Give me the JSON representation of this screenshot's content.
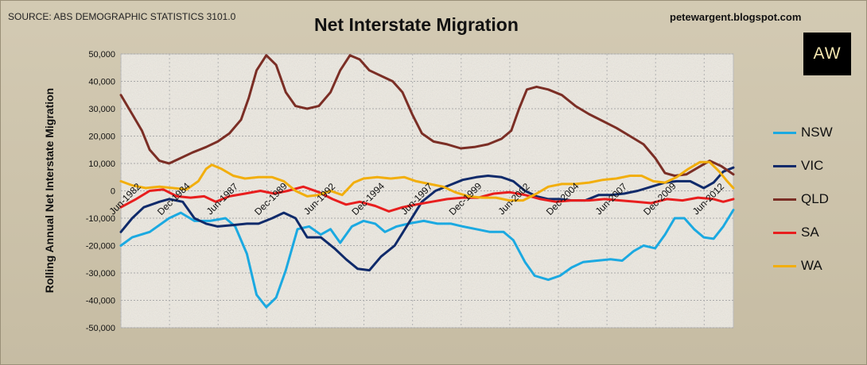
{
  "header": {
    "source": "SOURCE: ABS DEMOGRAPHIC STATISTICS 3101.0",
    "title": "Net Interstate Migration",
    "blog": "petewargent.blogspot.com",
    "logo": "AW"
  },
  "chart_data": {
    "type": "line",
    "title": "Net Interstate Migration",
    "ylabel": "Rolling Annual Net Interstate Migration",
    "xlabel": "",
    "ylim": [
      -50000,
      50000
    ],
    "yticks": [
      50000,
      40000,
      30000,
      20000,
      10000,
      0,
      -10000,
      -20000,
      -30000,
      -40000,
      -50000
    ],
    "ytick_labels": [
      "50,000",
      "40,000",
      "30,000",
      "20,000",
      "10,000",
      "0",
      "-10,000",
      "-20,000",
      "-30,000",
      "-40,000",
      "-50,000"
    ],
    "xlim": [
      1982.42,
      2013.92
    ],
    "xticks": [
      1982.42,
      1984.92,
      1987.42,
      1989.92,
      1992.42,
      1994.92,
      1997.42,
      1999.92,
      2002.42,
      2004.92,
      2007.42,
      2009.92,
      2012.42
    ],
    "xtick_labels": [
      "Jun-1982",
      "Dec-1984",
      "Jun-1987",
      "Dec-1989",
      "Jun-1992",
      "Dec-1994",
      "Jun-1997",
      "Dec-1999",
      "Jun-2002",
      "Dec-2004",
      "Jun-2007",
      "Dec-2009",
      "Jun-2012"
    ],
    "grid": true,
    "legend_position": "right",
    "series": [
      {
        "name": "NSW",
        "color": "#1ba9e1",
        "points": [
          [
            1982.42,
            -20000
          ],
          [
            1983.0,
            -17000
          ],
          [
            1983.9,
            -15000
          ],
          [
            1984.9,
            -10000
          ],
          [
            1985.5,
            -8000
          ],
          [
            1986.2,
            -11000
          ],
          [
            1987.0,
            -11000
          ],
          [
            1987.8,
            -10000
          ],
          [
            1988.3,
            -13000
          ],
          [
            1988.9,
            -23000
          ],
          [
            1989.4,
            -38000
          ],
          [
            1989.9,
            -42500
          ],
          [
            1990.4,
            -39000
          ],
          [
            1990.9,
            -29000
          ],
          [
            1991.5,
            -14000
          ],
          [
            1992.1,
            -13000
          ],
          [
            1992.7,
            -16000
          ],
          [
            1993.2,
            -14000
          ],
          [
            1993.7,
            -19000
          ],
          [
            1994.3,
            -13000
          ],
          [
            1994.9,
            -11000
          ],
          [
            1995.5,
            -12000
          ],
          [
            1996.0,
            -15000
          ],
          [
            1996.6,
            -13000
          ],
          [
            1997.2,
            -12000
          ],
          [
            1998.0,
            -11000
          ],
          [
            1998.7,
            -12000
          ],
          [
            1999.4,
            -12000
          ],
          [
            2000.0,
            -13000
          ],
          [
            2000.7,
            -14000
          ],
          [
            2001.4,
            -15000
          ],
          [
            2002.1,
            -15000
          ],
          [
            2002.6,
            -18000
          ],
          [
            2003.2,
            -26000
          ],
          [
            2003.7,
            -31000
          ],
          [
            2004.4,
            -32500
          ],
          [
            2005.0,
            -31000
          ],
          [
            2005.6,
            -28000
          ],
          [
            2006.2,
            -26000
          ],
          [
            2006.9,
            -25500
          ],
          [
            2007.6,
            -25000
          ],
          [
            2008.2,
            -25500
          ],
          [
            2008.8,
            -22000
          ],
          [
            2009.3,
            -20000
          ],
          [
            2009.9,
            -21000
          ],
          [
            2010.4,
            -16000
          ],
          [
            2010.9,
            -10000
          ],
          [
            2011.4,
            -10000
          ],
          [
            2011.9,
            -14000
          ],
          [
            2012.4,
            -17000
          ],
          [
            2012.9,
            -17500
          ],
          [
            2013.4,
            -13000
          ],
          [
            2013.92,
            -7000
          ]
        ]
      },
      {
        "name": "VIC",
        "color": "#0f2a6a",
        "points": [
          [
            1982.42,
            -15000
          ],
          [
            1983.0,
            -10000
          ],
          [
            1983.6,
            -6000
          ],
          [
            1984.4,
            -4000
          ],
          [
            1984.9,
            -3000
          ],
          [
            1985.6,
            -4000
          ],
          [
            1986.2,
            -10000
          ],
          [
            1986.8,
            -12000
          ],
          [
            1987.4,
            -13000
          ],
          [
            1988.2,
            -12500
          ],
          [
            1988.9,
            -12000
          ],
          [
            1989.5,
            -12000
          ],
          [
            1990.2,
            -10000
          ],
          [
            1990.8,
            -8000
          ],
          [
            1991.4,
            -10000
          ],
          [
            1992.0,
            -17000
          ],
          [
            1992.7,
            -17000
          ],
          [
            1993.4,
            -21000
          ],
          [
            1994.0,
            -25000
          ],
          [
            1994.6,
            -28500
          ],
          [
            1995.2,
            -29000
          ],
          [
            1995.8,
            -24000
          ],
          [
            1996.5,
            -20000
          ],
          [
            1997.2,
            -12000
          ],
          [
            1997.9,
            -4000
          ],
          [
            1998.6,
            0
          ],
          [
            1999.3,
            2000
          ],
          [
            2000.0,
            4000
          ],
          [
            2000.7,
            5000
          ],
          [
            2001.3,
            5500
          ],
          [
            2002.0,
            5000
          ],
          [
            2002.6,
            3500
          ],
          [
            2003.2,
            0
          ],
          [
            2003.8,
            -2000
          ],
          [
            2004.4,
            -3000
          ],
          [
            2005.0,
            -3000
          ],
          [
            2005.6,
            -3500
          ],
          [
            2006.3,
            -3500
          ],
          [
            2007.0,
            -1500
          ],
          [
            2007.6,
            -1500
          ],
          [
            2008.3,
            -1000
          ],
          [
            2009.0,
            0
          ],
          [
            2009.7,
            1500
          ],
          [
            2010.4,
            3000
          ],
          [
            2011.0,
            3500
          ],
          [
            2011.7,
            3500
          ],
          [
            2012.4,
            1000
          ],
          [
            2012.9,
            3000
          ],
          [
            2013.4,
            7000
          ],
          [
            2013.92,
            8500
          ]
        ]
      },
      {
        "name": "QLD",
        "color": "#7b2e25",
        "points": [
          [
            1982.42,
            35000
          ],
          [
            1983.0,
            28000
          ],
          [
            1983.5,
            22000
          ],
          [
            1983.9,
            15000
          ],
          [
            1984.4,
            11000
          ],
          [
            1984.9,
            10000
          ],
          [
            1985.5,
            12000
          ],
          [
            1986.1,
            14000
          ],
          [
            1986.8,
            16000
          ],
          [
            1987.4,
            18000
          ],
          [
            1988.0,
            21000
          ],
          [
            1988.6,
            26000
          ],
          [
            1989.0,
            34000
          ],
          [
            1989.4,
            44000
          ],
          [
            1989.9,
            49500
          ],
          [
            1990.4,
            46000
          ],
          [
            1990.9,
            36000
          ],
          [
            1991.4,
            31000
          ],
          [
            1992.0,
            30000
          ],
          [
            1992.6,
            31000
          ],
          [
            1993.2,
            36000
          ],
          [
            1993.7,
            44000
          ],
          [
            1994.2,
            49500
          ],
          [
            1994.7,
            48000
          ],
          [
            1995.2,
            44000
          ],
          [
            1995.8,
            42000
          ],
          [
            1996.4,
            40000
          ],
          [
            1996.9,
            36000
          ],
          [
            1997.4,
            28000
          ],
          [
            1997.9,
            21000
          ],
          [
            1998.5,
            18000
          ],
          [
            1999.2,
            17000
          ],
          [
            1999.9,
            15500
          ],
          [
            2000.6,
            16000
          ],
          [
            2001.3,
            17000
          ],
          [
            2002.0,
            19000
          ],
          [
            2002.5,
            22000
          ],
          [
            2002.9,
            30000
          ],
          [
            2003.3,
            37000
          ],
          [
            2003.8,
            38000
          ],
          [
            2004.4,
            37000
          ],
          [
            2005.1,
            35000
          ],
          [
            2005.8,
            31000
          ],
          [
            2006.5,
            28000
          ],
          [
            2007.2,
            25500
          ],
          [
            2007.9,
            23000
          ],
          [
            2008.6,
            20000
          ],
          [
            2009.3,
            17000
          ],
          [
            2009.9,
            12000
          ],
          [
            2010.4,
            6500
          ],
          [
            2010.9,
            5500
          ],
          [
            2011.5,
            6000
          ],
          [
            2012.1,
            8500
          ],
          [
            2012.7,
            11000
          ],
          [
            2013.3,
            9000
          ],
          [
            2013.92,
            6000
          ]
        ]
      },
      {
        "name": "SA",
        "color": "#e81e1e",
        "points": [
          [
            1982.42,
            -6000
          ],
          [
            1983.2,
            -3000
          ],
          [
            1983.9,
            0
          ],
          [
            1984.6,
            500
          ],
          [
            1985.3,
            -2000
          ],
          [
            1986.0,
            -2500
          ],
          [
            1986.7,
            -2000
          ],
          [
            1987.3,
            -4000
          ],
          [
            1988.0,
            -2000
          ],
          [
            1988.8,
            -1000
          ],
          [
            1989.6,
            0
          ],
          [
            1990.3,
            -1000
          ],
          [
            1991.0,
            0
          ],
          [
            1991.8,
            1500
          ],
          [
            1992.6,
            -500
          ],
          [
            1993.3,
            -3000
          ],
          [
            1994.0,
            -5000
          ],
          [
            1994.7,
            -4000
          ],
          [
            1995.5,
            -5500
          ],
          [
            1996.2,
            -7500
          ],
          [
            1996.9,
            -6000
          ],
          [
            1997.6,
            -5000
          ],
          [
            1998.4,
            -4000
          ],
          [
            1999.2,
            -3000
          ],
          [
            2000.0,
            -2500
          ],
          [
            2000.8,
            -2500
          ],
          [
            2001.6,
            -1000
          ],
          [
            2002.4,
            -500
          ],
          [
            2003.2,
            -1500
          ],
          [
            2004.0,
            -3000
          ],
          [
            2004.8,
            -4000
          ],
          [
            2005.6,
            -3500
          ],
          [
            2006.5,
            -3500
          ],
          [
            2007.3,
            -3000
          ],
          [
            2008.1,
            -3500
          ],
          [
            2008.9,
            -4000
          ],
          [
            2009.7,
            -4500
          ],
          [
            2010.5,
            -3000
          ],
          [
            2011.3,
            -3500
          ],
          [
            2012.1,
            -2500
          ],
          [
            2012.9,
            -3000
          ],
          [
            2013.4,
            -4000
          ],
          [
            2013.92,
            -3000
          ]
        ]
      },
      {
        "name": "WA",
        "color": "#f2ae0c",
        "points": [
          [
            1982.42,
            3500
          ],
          [
            1983.0,
            2000
          ],
          [
            1983.7,
            1000
          ],
          [
            1984.4,
            1500
          ],
          [
            1985.1,
            1000
          ],
          [
            1985.8,
            500
          ],
          [
            1986.4,
            3500
          ],
          [
            1986.8,
            8000
          ],
          [
            1987.1,
            9500
          ],
          [
            1987.6,
            8000
          ],
          [
            1988.2,
            5500
          ],
          [
            1988.8,
            4500
          ],
          [
            1989.5,
            5000
          ],
          [
            1990.2,
            5000
          ],
          [
            1990.8,
            3500
          ],
          [
            1991.4,
            0
          ],
          [
            1992.0,
            -2000
          ],
          [
            1992.6,
            -1500
          ],
          [
            1993.2,
            0
          ],
          [
            1993.8,
            -1500
          ],
          [
            1994.4,
            3000
          ],
          [
            1994.9,
            4500
          ],
          [
            1995.6,
            5000
          ],
          [
            1996.3,
            4500
          ],
          [
            1997.0,
            5000
          ],
          [
            1997.6,
            3500
          ],
          [
            1998.3,
            2500
          ],
          [
            1999.0,
            1500
          ],
          [
            1999.6,
            -500
          ],
          [
            2000.3,
            -2000
          ],
          [
            2001.0,
            -2500
          ],
          [
            2001.7,
            -2500
          ],
          [
            2002.4,
            -3500
          ],
          [
            2003.1,
            -3500
          ],
          [
            2003.8,
            -1000
          ],
          [
            2004.4,
            1500
          ],
          [
            2005.1,
            2500
          ],
          [
            2005.8,
            2500
          ],
          [
            2006.5,
            3000
          ],
          [
            2007.2,
            4000
          ],
          [
            2007.9,
            4500
          ],
          [
            2008.6,
            5500
          ],
          [
            2009.2,
            5500
          ],
          [
            2009.8,
            3500
          ],
          [
            2010.4,
            3000
          ],
          [
            2011.0,
            5000
          ],
          [
            2011.6,
            8000
          ],
          [
            2012.2,
            10500
          ],
          [
            2012.7,
            10500
          ],
          [
            2013.2,
            7000
          ],
          [
            2013.6,
            3500
          ],
          [
            2013.92,
            1000
          ]
        ]
      }
    ]
  }
}
